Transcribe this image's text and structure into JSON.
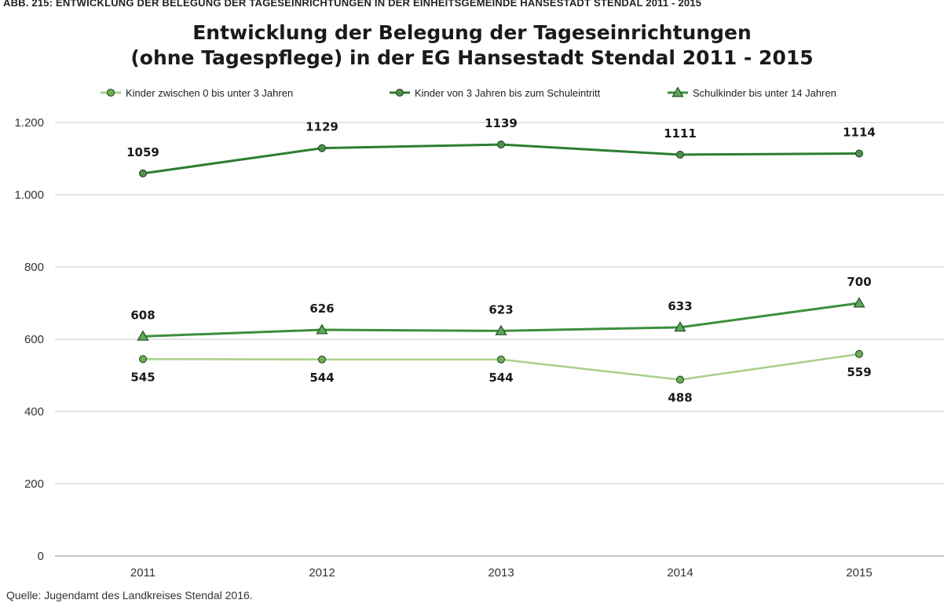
{
  "header": {
    "strip_text": "ABB. 215: ENTWICKLUNG DER BELEGUNG DER TAGESEINRICHTUNGEN IN DER EINHEITSGEMEINDE HANSESTADT STENDAL 2011 - 2015"
  },
  "source": "Quelle: Jugendamt des Landkreises Stendal 2016.",
  "colors": {
    "series_light": "#a9d18e",
    "series_dark": "#2e7d32",
    "series_mid": "#3c8f3c",
    "grid": "#c8c8c8",
    "axis": "#9e9e9e"
  },
  "chart_data": {
    "type": "line",
    "title": "Entwicklung der Belegung der Tageseinrichtungen",
    "subtitle": "(ohne Tagespflege) in der EG Hansestadt Stendal 2011 - 2015",
    "xlabel": "",
    "ylabel": "",
    "x": [
      "2011",
      "2012",
      "2013",
      "2014",
      "2015"
    ],
    "ylim": [
      0,
      1200
    ],
    "yticks": [
      0,
      200,
      400,
      600,
      800,
      1000,
      1200
    ],
    "ytick_labels": [
      "0",
      "200",
      "400",
      "600",
      "800",
      "1.000",
      "1.200"
    ],
    "grid": true,
    "legend_position": "top",
    "series": [
      {
        "name": "Kinder zwischen 0 bis unter 3 Jahren",
        "values": [
          545,
          544,
          544,
          488,
          559
        ],
        "labels": [
          "545",
          "544",
          "544",
          "488",
          "559"
        ],
        "label_position": "below",
        "marker": "circle",
        "color": "#a9d18e",
        "marker_fill": "#6fae56"
      },
      {
        "name": "Kinder von 3 Jahren bis zum Schuleintritt",
        "values": [
          1059,
          1129,
          1139,
          1111,
          1114
        ],
        "labels": [
          "1059",
          "1129",
          "1139",
          "1111",
          "1114"
        ],
        "label_position": "above",
        "marker": "circle",
        "color": "#2e7d32",
        "marker_fill": "#4e8f4e"
      },
      {
        "name": "Schulkinder bis unter 14 Jahren",
        "values": [
          608,
          626,
          623,
          633,
          700
        ],
        "labels": [
          "608",
          "626",
          "623",
          "633",
          "700"
        ],
        "label_position": "above",
        "marker": "triangle",
        "color": "#3c8f3c",
        "marker_fill": "#5fa85a"
      }
    ]
  }
}
